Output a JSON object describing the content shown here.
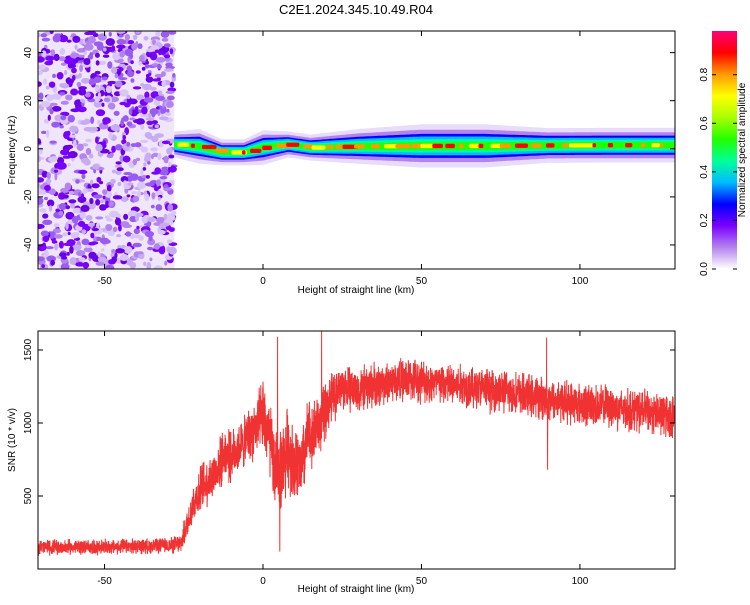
{
  "figure_title": "C2E1.2024.345.10.49.R04",
  "chart_data": [
    {
      "type": "heatmap",
      "xlabel": "Height of straight line (km)",
      "ylabel": "Frequency (Hz)",
      "xlim": [
        -71,
        130
      ],
      "ylim": [
        -50,
        49
      ],
      "xticks": [
        -50,
        0,
        50,
        100
      ],
      "yticks": [
        -40,
        -20,
        0,
        20,
        40
      ],
      "x_tick_labels": [
        "-50",
        "0",
        "50",
        "100"
      ],
      "y_tick_labels": [
        "-40",
        "-20",
        "0",
        "20",
        "40"
      ],
      "noise_region_km": [
        -71,
        -28
      ],
      "signal_band": [
        {
          "x": -28,
          "center": 1.8,
          "halfwidth": 3
        },
        {
          "x": -20,
          "center": 1.0,
          "halfwidth": 4
        },
        {
          "x": -13,
          "center": -1.5,
          "halfwidth": 3
        },
        {
          "x": -6,
          "center": -1.5,
          "halfwidth": 3
        },
        {
          "x": 0,
          "center": 0.5,
          "halfwidth": 4
        },
        {
          "x": 8,
          "center": 1.8,
          "halfwidth": 3
        },
        {
          "x": 15,
          "center": 0.5,
          "halfwidth": 3
        },
        {
          "x": 30,
          "center": 1.0,
          "halfwidth": 4
        },
        {
          "x": 50,
          "center": 1.2,
          "halfwidth": 5
        },
        {
          "x": 70,
          "center": 1.2,
          "halfwidth": 5
        },
        {
          "x": 90,
          "center": 1.4,
          "halfwidth": 4
        },
        {
          "x": 110,
          "center": 1.5,
          "halfwidth": 4
        },
        {
          "x": 130,
          "center": 1.5,
          "halfwidth": 4
        }
      ],
      "colorbar": {
        "label": "Normalized spectral amplitude",
        "range": [
          0.0,
          0.98
        ],
        "ticks": [
          0.0,
          0.2,
          0.4,
          0.6,
          0.8
        ],
        "tick_labels": [
          "0.0",
          "0.2",
          "0.4",
          "0.6",
          "0.8"
        ],
        "colors": [
          "#ffffff",
          "#b383ee",
          "#7a00ff",
          "#0000ff",
          "#00bbff",
          "#00ff99",
          "#22ff00",
          "#aaff00",
          "#ffff00",
          "#ff9900",
          "#ff0000",
          "#ff0077"
        ]
      }
    },
    {
      "type": "line",
      "xlabel": "Height of straight line (km)",
      "ylabel": "SNR (10 * v/v)",
      "xlim": [
        -71,
        130
      ],
      "ylim": [
        0,
        1630
      ],
      "xticks": [
        -50,
        0,
        50,
        100
      ],
      "yticks": [
        500,
        1000,
        1500
      ],
      "x_tick_labels": [
        "-50",
        "0",
        "50",
        "100"
      ],
      "y_tick_labels": [
        "500",
        "1000",
        "1500"
      ],
      "line_color": "#f03232",
      "series": [
        {
          "name": "SNR",
          "x": [
            -71,
            -60,
            -50,
            -40,
            -30,
            -26,
            -24,
            -22,
            -20,
            -18,
            -16,
            -14,
            -12,
            -10,
            -8,
            -6,
            -4,
            -2,
            0,
            2,
            4,
            6,
            8,
            10,
            12,
            14,
            16,
            18,
            20,
            22,
            25,
            30,
            35,
            40,
            45,
            50,
            55,
            60,
            65,
            70,
            75,
            80,
            85,
            90,
            95,
            100,
            105,
            110,
            115,
            120,
            125,
            130
          ],
          "y": [
            150,
            150,
            150,
            155,
            160,
            170,
            300,
            450,
            540,
            600,
            620,
            700,
            800,
            760,
            830,
            860,
            940,
            950,
            1050,
            900,
            650,
            700,
            850,
            700,
            680,
            900,
            950,
            1000,
            1100,
            1180,
            1250,
            1220,
            1260,
            1280,
            1300,
            1290,
            1270,
            1260,
            1250,
            1230,
            1220,
            1200,
            1180,
            1160,
            1150,
            1130,
            1120,
            1110,
            1090,
            1080,
            1060,
            1040
          ],
          "noise_amplitude": [
            60,
            60,
            60,
            60,
            60,
            80,
            120,
            160,
            180,
            200,
            200,
            200,
            200,
            200,
            200,
            200,
            220,
            250,
            300,
            300,
            330,
            330,
            330,
            300,
            300,
            300,
            260,
            240,
            220,
            200,
            180,
            180,
            180,
            170,
            170,
            170,
            170,
            170,
            170,
            170,
            170,
            170,
            170,
            170,
            170,
            170,
            170,
            170,
            170,
            170,
            170,
            170
          ],
          "spikes": [
            {
              "x": 4.6,
              "y": 1590
            },
            {
              "x": 5.3,
              "y": 120
            },
            {
              "x": 18.5,
              "y": 1630
            },
            {
              "x": 89.5,
              "y": 1585
            },
            {
              "x": 89.8,
              "y": 680
            }
          ]
        }
      ]
    }
  ]
}
